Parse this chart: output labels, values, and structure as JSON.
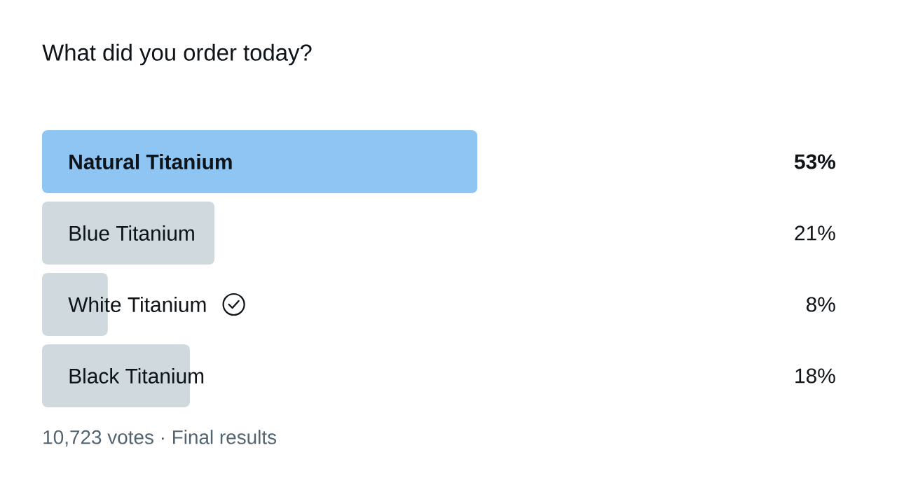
{
  "chart_data": {
    "type": "bar",
    "orientation": "horizontal",
    "title": "What did you order today?",
    "categories": [
      "Natural Titanium",
      "Blue Titanium",
      "White Titanium",
      "Black Titanium"
    ],
    "values": [
      53,
      21,
      8,
      18
    ],
    "value_labels": [
      "53%",
      "21%",
      "8%",
      "18%"
    ],
    "colors": [
      "#8ec5f2",
      "#cfd9de",
      "#cfd9de",
      "#cfd9de"
    ],
    "annotations": [
      "10,723 votes · Final results"
    ]
  }
}
